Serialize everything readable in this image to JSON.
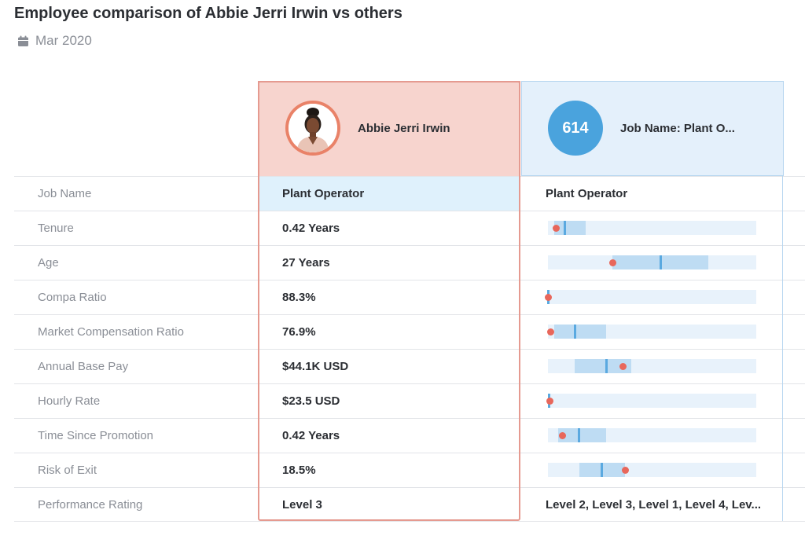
{
  "page": {
    "title": "Employee comparison of Abbie Jerri Irwin vs others",
    "date": "Mar 2020",
    "date_icon": "calendar-icon"
  },
  "employee": {
    "name": "Abbie Jerri Irwin",
    "avatar": "employee-photo"
  },
  "comparison": {
    "count": "614",
    "label": "Job Name: Plant O..."
  },
  "colors": {
    "employee_bg": "#f7d4ce",
    "employee_border": "#e59a90",
    "comparison_bg": "#e4f0fb",
    "highlight_bg": "#dff1fc",
    "count_circle": "#4aa3dd",
    "marker_dot": "#e8675b",
    "range_bar": "#bedcf3",
    "median_line": "#5aa9e0"
  },
  "rows": [
    {
      "label": "Job Name",
      "value": "Plant Operator",
      "comparison": "Plant Operator",
      "highlight": true
    },
    {
      "label": "Tenure",
      "value": "0.42 Years",
      "range": [
        0.03,
        0.18
      ],
      "median": 0.08,
      "marker": 0.04
    },
    {
      "label": "Age",
      "value": "27 Years",
      "range": [
        0.31,
        0.77
      ],
      "median": 0.54,
      "marker": 0.31
    },
    {
      "label": "Compa Ratio",
      "value": "88.3%",
      "range": [
        0.0,
        0.005
      ],
      "median": 0.002,
      "marker": 0.003
    },
    {
      "label": "Market Compensation Ratio",
      "value": "76.9%",
      "range": [
        0.03,
        0.28
      ],
      "median": 0.13,
      "marker": 0.015
    },
    {
      "label": "Annual Base Pay",
      "value": "$44.1K USD",
      "range": [
        0.13,
        0.4
      ],
      "median": 0.28,
      "marker": 0.36
    },
    {
      "label": "Hourly Rate",
      "value": "$23.5 USD",
      "range": [
        0.0,
        0.005
      ],
      "median": 0.006,
      "marker": 0.008
    },
    {
      "label": "Time Since Promotion",
      "value": "0.42 Years",
      "range": [
        0.05,
        0.28
      ],
      "median": 0.15,
      "marker": 0.07
    },
    {
      "label": "Risk of Exit",
      "value": "18.5%",
      "range": [
        0.15,
        0.37
      ],
      "median": 0.26,
      "marker": 0.37
    },
    {
      "label": "Performance Rating",
      "value": "Level 3",
      "comparison": "Level 2, Level 3, Level 1, Level 4, Lev..."
    }
  ]
}
